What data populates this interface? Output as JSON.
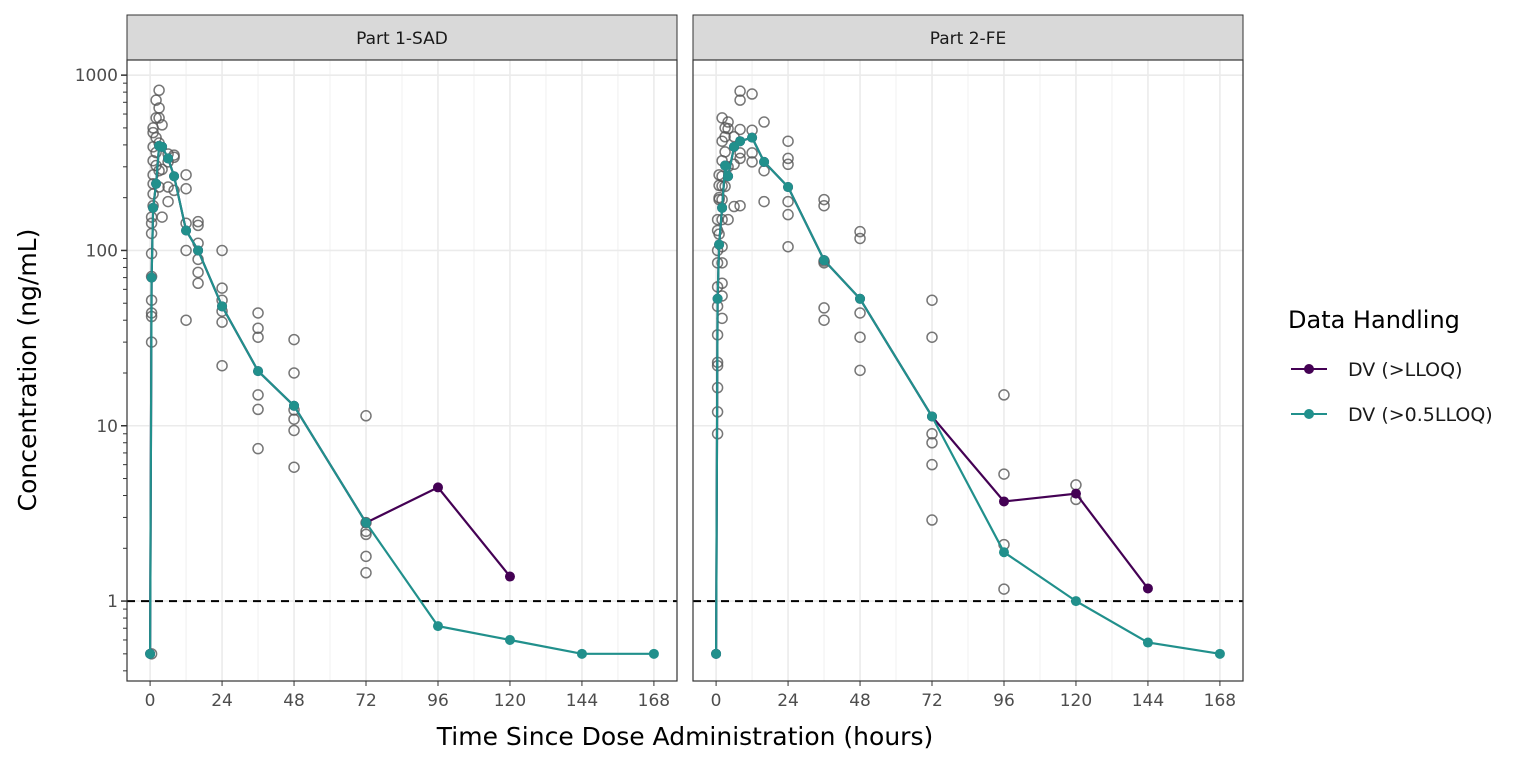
{
  "chart_data": {
    "type": "line",
    "title": "",
    "xlabel": "Time Since Dose Administration (hours)",
    "ylabel": "Concentration (ng/mL)",
    "x_ticks": [
      0,
      24,
      48,
      72,
      96,
      120,
      144,
      168
    ],
    "y_ticks": [
      1,
      10,
      100,
      1000
    ],
    "y_tick_labels": [
      "1",
      "10",
      "100",
      "1000"
    ],
    "y_scale": "log10",
    "xlim": [
      -7.7,
      175.7
    ],
    "ylim": [
      0.35,
      1220
    ],
    "grid": true,
    "reference_line": {
      "y": 1,
      "style": "dashed",
      "color": "#000000"
    },
    "legend": {
      "title": "Data Handling",
      "placement": "right",
      "entries": [
        {
          "label": "DV (>LLOQ)",
          "color": "#440154"
        },
        {
          "label": "DV (>0.5LLOQ)",
          "color": "#21908C"
        }
      ]
    },
    "observed_color": "#555555",
    "panels": [
      {
        "strip": "Part 1-SAD",
        "series": [
          {
            "name": "DV (>LLOQ)",
            "color": "#440154",
            "points": [
              [
                0,
                0.5
              ],
              [
                0.5,
                70
              ],
              [
                1,
                175
              ],
              [
                2,
                240
              ],
              [
                3,
                395
              ],
              [
                4,
                390
              ],
              [
                6,
                335
              ],
              [
                8,
                265
              ],
              [
                12,
                130
              ],
              [
                16,
                100
              ],
              [
                24,
                48
              ],
              [
                36,
                20.5
              ],
              [
                48,
                13
              ],
              [
                72,
                2.8
              ],
              [
                96,
                4.45
              ],
              [
                120,
                1.38
              ]
            ]
          },
          {
            "name": "DV (>0.5LLOQ)",
            "color": "#21908C",
            "points": [
              [
                0,
                0.5
              ],
              [
                0.5,
                70
              ],
              [
                1,
                175
              ],
              [
                2,
                240
              ],
              [
                3,
                395
              ],
              [
                4,
                390
              ],
              [
                6,
                335
              ],
              [
                8,
                265
              ],
              [
                12,
                130
              ],
              [
                16,
                100
              ],
              [
                24,
                48
              ],
              [
                36,
                20.5
              ],
              [
                48,
                13
              ],
              [
                72,
                2.8
              ],
              [
                96,
                0.72
              ],
              [
                120,
                0.6
              ],
              [
                144,
                0.5
              ],
              [
                168,
                0.5
              ]
            ]
          }
        ],
        "observed": [
          [
            0.5,
            0.5
          ],
          [
            0.5,
            30
          ],
          [
            0.5,
            42
          ],
          [
            0.5,
            44
          ],
          [
            0.5,
            52
          ],
          [
            0.5,
            71
          ],
          [
            0.5,
            96
          ],
          [
            0.5,
            125
          ],
          [
            0.5,
            143
          ],
          [
            0.5,
            155
          ],
          [
            1,
            180
          ],
          [
            1,
            210
          ],
          [
            1,
            240
          ],
          [
            1,
            270
          ],
          [
            1,
            325
          ],
          [
            1,
            390
          ],
          [
            1,
            470
          ],
          [
            1,
            500
          ],
          [
            2,
            305
          ],
          [
            2,
            362
          ],
          [
            2,
            440
          ],
          [
            2,
            570
          ],
          [
            2,
            720
          ],
          [
            3,
            820
          ],
          [
            3,
            650
          ],
          [
            3,
            570
          ],
          [
            3,
            410
          ],
          [
            3,
            285
          ],
          [
            3,
            230
          ],
          [
            4,
            520
          ],
          [
            4,
            290
          ],
          [
            4,
            155
          ],
          [
            6,
            355
          ],
          [
            6,
            320
          ],
          [
            6,
            230
          ],
          [
            6,
            190
          ],
          [
            8,
            350
          ],
          [
            8,
            340
          ],
          [
            8,
            220
          ],
          [
            12,
            270
          ],
          [
            12,
            225
          ],
          [
            12,
            143
          ],
          [
            12,
            100
          ],
          [
            12,
            40
          ],
          [
            16,
            146
          ],
          [
            16,
            139
          ],
          [
            16,
            110
          ],
          [
            16,
            89
          ],
          [
            16,
            75
          ],
          [
            16,
            65
          ],
          [
            24,
            100
          ],
          [
            24,
            61
          ],
          [
            24,
            52
          ],
          [
            24,
            45
          ],
          [
            24,
            39
          ],
          [
            24,
            22
          ],
          [
            36,
            44
          ],
          [
            36,
            36
          ],
          [
            36,
            32
          ],
          [
            36,
            15
          ],
          [
            36,
            12.4
          ],
          [
            36,
            7.4
          ],
          [
            48,
            31
          ],
          [
            48,
            20
          ],
          [
            48,
            12.3
          ],
          [
            48,
            10.9
          ],
          [
            48,
            9.4
          ],
          [
            48,
            5.8
          ],
          [
            72,
            11.4
          ],
          [
            72,
            2.8
          ],
          [
            72,
            2.4
          ],
          [
            72,
            2.5
          ],
          [
            72,
            1.8
          ],
          [
            72,
            1.45
          ]
        ]
      },
      {
        "strip": "Part 2-FE",
        "series": [
          {
            "name": "DV (>LLOQ)",
            "color": "#440154",
            "points": [
              [
                0,
                0.5
              ],
              [
                0.5,
                53
              ],
              [
                1,
                108
              ],
              [
                2,
                175
              ],
              [
                3,
                305
              ],
              [
                4,
                265
              ],
              [
                6,
                390
              ],
              [
                8,
                420
              ],
              [
                12,
                440
              ],
              [
                16,
                320
              ],
              [
                24,
                230
              ],
              [
                36,
                88
              ],
              [
                48,
                53
              ],
              [
                72,
                11.3
              ],
              [
                96,
                3.7
              ],
              [
                120,
                4.1
              ],
              [
                144,
                1.18
              ]
            ]
          },
          {
            "name": "DV (>0.5LLOQ)",
            "color": "#21908C",
            "points": [
              [
                0,
                0.5
              ],
              [
                0.5,
                53
              ],
              [
                1,
                108
              ],
              [
                2,
                175
              ],
              [
                3,
                305
              ],
              [
                4,
                265
              ],
              [
                6,
                390
              ],
              [
                8,
                420
              ],
              [
                12,
                440
              ],
              [
                16,
                320
              ],
              [
                24,
                230
              ],
              [
                36,
                88
              ],
              [
                48,
                53
              ],
              [
                72,
                11.3
              ],
              [
                96,
                1.9
              ],
              [
                120,
                1.0
              ],
              [
                144,
                0.58
              ],
              [
                168,
                0.5
              ]
            ]
          }
        ],
        "observed": [
          [
            0.5,
            9
          ],
          [
            0.5,
            12
          ],
          [
            0.5,
            16.5
          ],
          [
            0.5,
            22
          ],
          [
            0.5,
            23
          ],
          [
            0.5,
            33
          ],
          [
            0.5,
            48
          ],
          [
            0.5,
            62
          ],
          [
            0.5,
            85
          ],
          [
            0.5,
            100
          ],
          [
            0.5,
            130
          ],
          [
            0.5,
            150
          ],
          [
            1,
            124
          ],
          [
            1,
            195
          ],
          [
            1,
            235
          ],
          [
            1,
            270
          ],
          [
            1,
            200
          ],
          [
            2,
            41
          ],
          [
            2,
            55
          ],
          [
            2,
            65
          ],
          [
            2,
            85
          ],
          [
            2,
            105
          ],
          [
            2,
            150
          ],
          [
            2,
            195
          ],
          [
            2,
            233
          ],
          [
            2,
            265
          ],
          [
            2,
            325
          ],
          [
            2,
            420
          ],
          [
            2,
            570
          ],
          [
            3,
            232
          ],
          [
            3,
            365
          ],
          [
            3,
            445
          ],
          [
            3,
            500
          ],
          [
            4,
            150
          ],
          [
            4,
            300
          ],
          [
            4,
            495
          ],
          [
            4,
            540
          ],
          [
            6,
            178
          ],
          [
            6,
            310
          ],
          [
            6,
            445
          ],
          [
            8,
            810
          ],
          [
            8,
            720
          ],
          [
            8,
            490
          ],
          [
            8,
            360
          ],
          [
            8,
            335
          ],
          [
            8,
            180
          ],
          [
            12,
            780
          ],
          [
            12,
            485
          ],
          [
            12,
            360
          ],
          [
            12,
            320
          ],
          [
            16,
            540
          ],
          [
            16,
            285
          ],
          [
            16,
            190
          ],
          [
            24,
            420
          ],
          [
            24,
            335
          ],
          [
            24,
            310
          ],
          [
            24,
            190
          ],
          [
            24,
            160
          ],
          [
            24,
            105
          ],
          [
            36,
            195
          ],
          [
            36,
            180
          ],
          [
            36,
            87
          ],
          [
            36,
            85
          ],
          [
            36,
            47
          ],
          [
            36,
            40
          ],
          [
            48,
            128
          ],
          [
            48,
            117
          ],
          [
            48,
            44
          ],
          [
            48,
            32
          ],
          [
            48,
            20.7
          ],
          [
            72,
            52
          ],
          [
            72,
            32
          ],
          [
            72,
            9
          ],
          [
            72,
            8
          ],
          [
            72,
            6
          ],
          [
            72,
            2.9
          ],
          [
            96,
            15
          ],
          [
            96,
            5.3
          ],
          [
            96,
            2.1
          ],
          [
            96,
            1.17
          ],
          [
            120,
            4.6
          ],
          [
            120,
            3.8
          ]
        ]
      }
    ]
  }
}
